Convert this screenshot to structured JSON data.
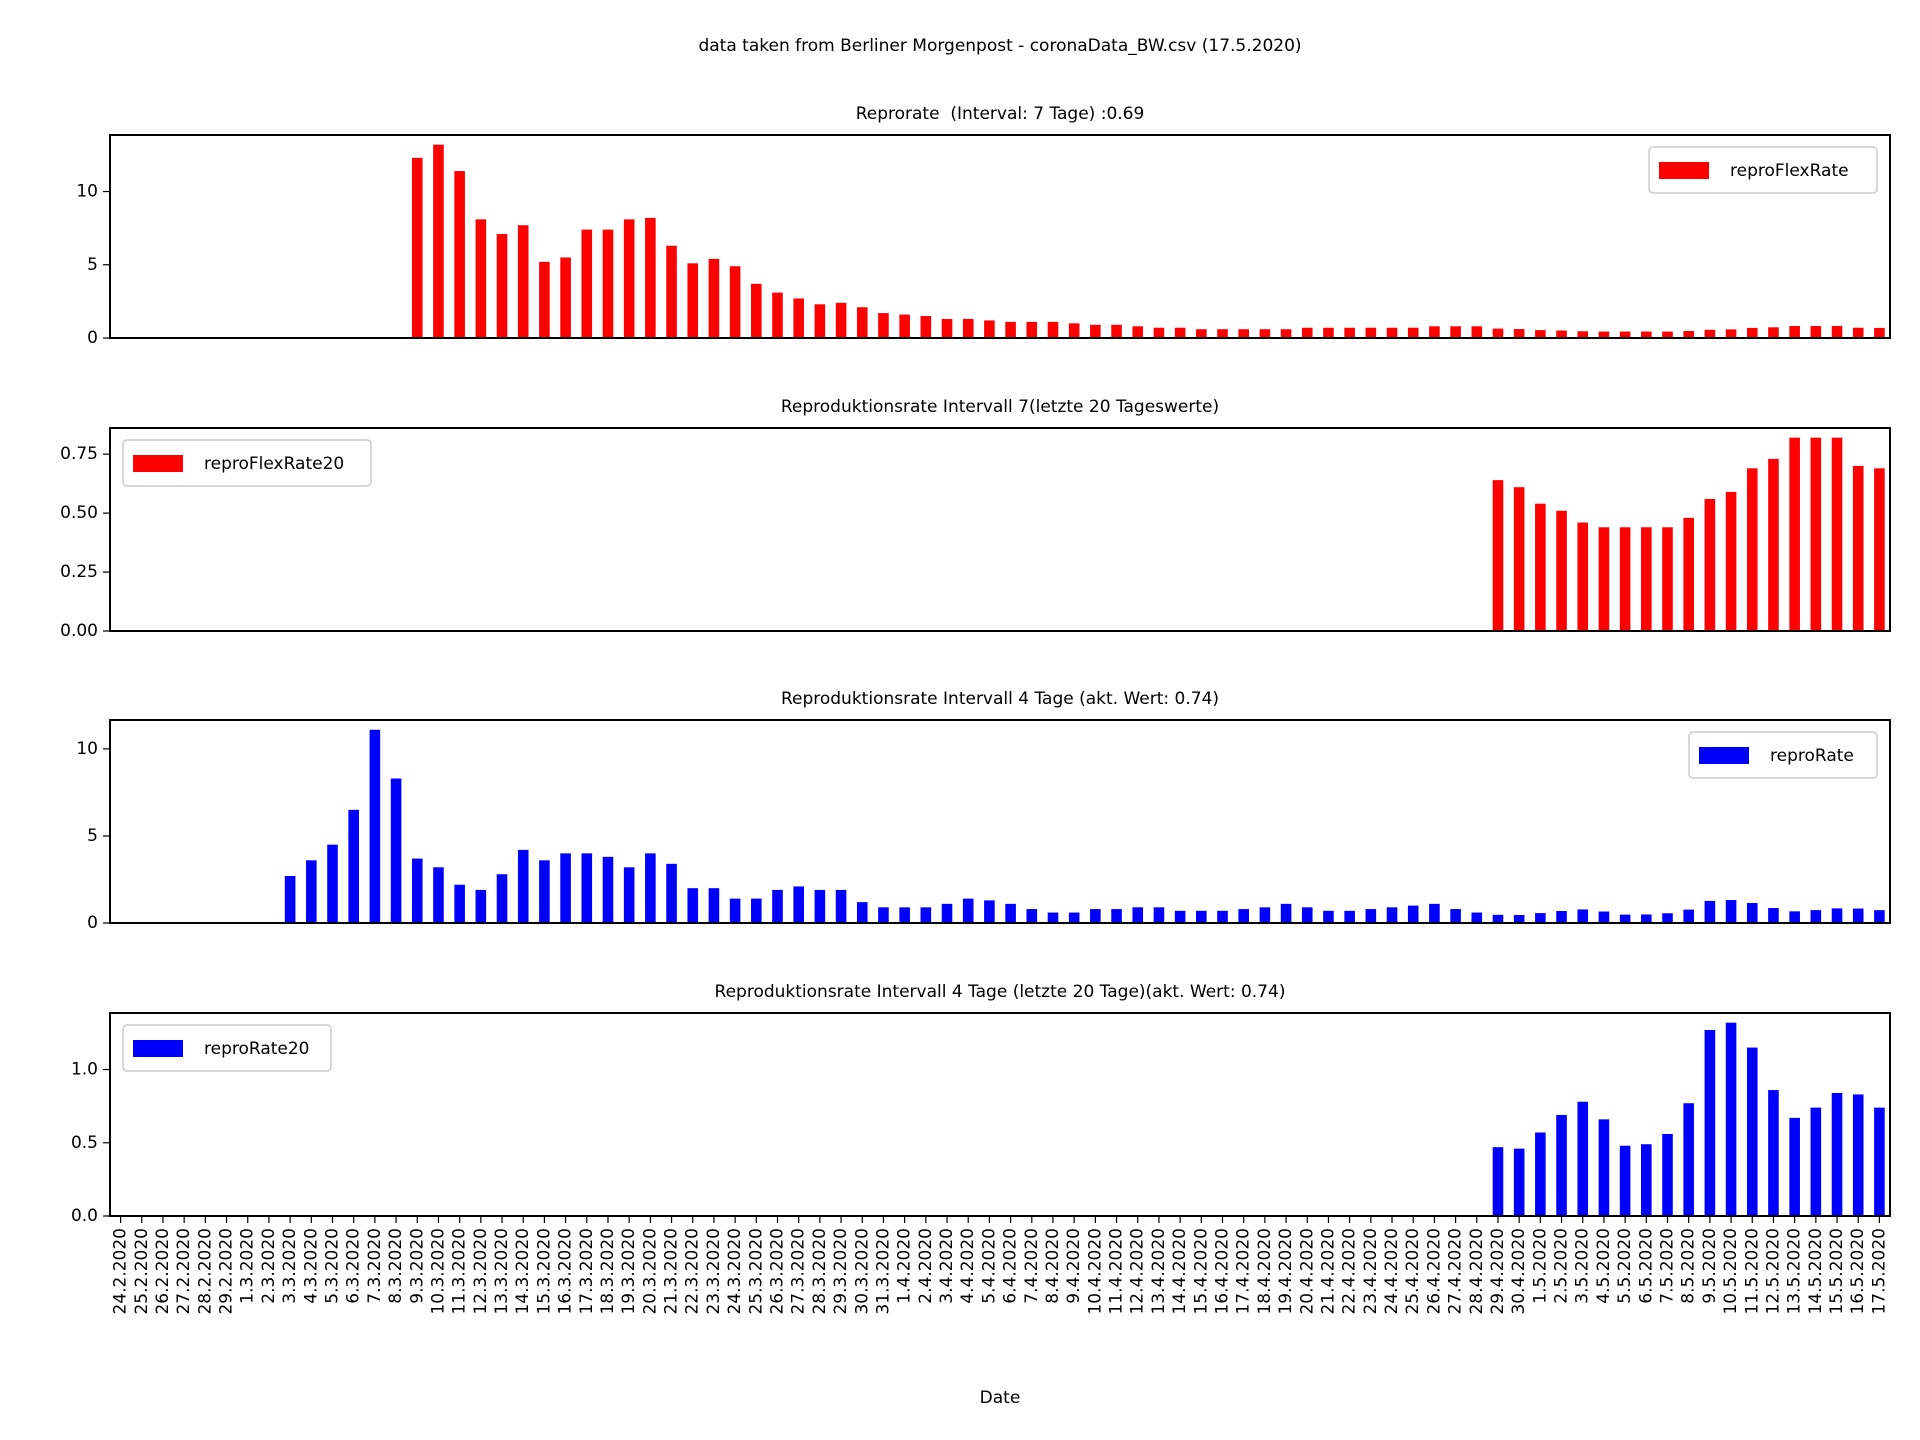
{
  "title": "data taken from Berliner Morgenpost - coronaData_BW.csv (17.5.2020)",
  "chart_data": [
    {
      "type": "bar",
      "title": "Reprorate  (Interval: 7 Tage) :0.69",
      "series": [
        {
          "name": "reproFlexRate",
          "color": "#ff0000",
          "values": [
            null,
            null,
            null,
            null,
            null,
            null,
            null,
            null,
            null,
            null,
            null,
            null,
            null,
            null,
            12.3,
            13.2,
            11.4,
            8.1,
            7.1,
            7.7,
            5.2,
            5.5,
            7.4,
            7.4,
            8.1,
            8.2,
            6.3,
            5.1,
            5.4,
            4.9,
            3.7,
            3.1,
            2.7,
            2.3,
            2.4,
            2.1,
            1.7,
            1.6,
            1.5,
            1.3,
            1.3,
            1.2,
            1.1,
            1.1,
            1.1,
            1.0,
            0.9,
            0.9,
            0.8,
            0.7,
            0.7,
            0.6,
            0.6,
            0.6,
            0.6,
            0.6,
            0.7,
            0.7,
            0.7,
            0.7,
            0.7,
            0.7,
            0.8,
            0.8,
            0.8,
            0.64,
            0.61,
            0.54,
            0.51,
            0.46,
            0.44,
            0.44,
            0.44,
            0.44,
            0.48,
            0.56,
            0.59,
            0.69,
            0.73,
            0.82,
            0.82,
            0.82,
            0.7,
            0.69
          ]
        }
      ],
      "ylim": [
        0,
        13.86
      ],
      "yticks": [
        0,
        5,
        10
      ],
      "legend": "upper right"
    },
    {
      "type": "bar",
      "title": "Reproduktionsrate Intervall 7(letzte 20 Tageswerte)",
      "series": [
        {
          "name": "reproFlexRate20",
          "color": "#ff0000",
          "values": [
            null,
            null,
            null,
            null,
            null,
            null,
            null,
            null,
            null,
            null,
            null,
            null,
            null,
            null,
            null,
            null,
            null,
            null,
            null,
            null,
            null,
            null,
            null,
            null,
            null,
            null,
            null,
            null,
            null,
            null,
            null,
            null,
            null,
            null,
            null,
            null,
            null,
            null,
            null,
            null,
            null,
            null,
            null,
            null,
            null,
            null,
            null,
            null,
            null,
            null,
            null,
            null,
            null,
            null,
            null,
            null,
            null,
            null,
            null,
            null,
            null,
            null,
            null,
            null,
            null,
            0.64,
            0.61,
            0.54,
            0.51,
            0.46,
            0.44,
            0.44,
            0.44,
            0.44,
            0.48,
            0.56,
            0.59,
            0.69,
            0.73,
            0.82,
            0.82,
            0.82,
            0.7,
            0.69
          ]
        }
      ],
      "ylim": [
        0,
        0.861
      ],
      "yticks": [
        {
          "value": 0,
          "label": "0.00"
        },
        0.25,
        {
          "value": 0.5,
          "label": "0.50"
        },
        0.75
      ],
      "legend": "upper left"
    },
    {
      "type": "bar",
      "title": "Reproduktionsrate Intervall 4 Tage (akt. Wert: 0.74)",
      "series": [
        {
          "name": "reproRate",
          "color": "#0000ff",
          "values": [
            null,
            null,
            null,
            null,
            null,
            null,
            null,
            null,
            2.7,
            3.6,
            4.5,
            6.5,
            11.1,
            8.3,
            3.7,
            3.2,
            2.2,
            1.9,
            2.8,
            4.2,
            3.6,
            4.0,
            4.0,
            3.8,
            3.2,
            4.0,
            3.4,
            2.0,
            2.0,
            1.4,
            1.4,
            1.9,
            2.1,
            1.9,
            1.9,
            1.2,
            0.9,
            0.9,
            0.9,
            1.1,
            1.4,
            1.3,
            1.1,
            0.8,
            0.6,
            0.6,
            0.8,
            0.8,
            0.9,
            0.9,
            0.7,
            0.7,
            0.7,
            0.8,
            0.9,
            1.1,
            0.9,
            0.7,
            0.7,
            0.8,
            0.9,
            1.0,
            1.1,
            0.8,
            0.6,
            0.47,
            0.46,
            0.57,
            0.69,
            0.78,
            0.66,
            0.48,
            0.49,
            0.56,
            0.77,
            1.27,
            1.32,
            1.15,
            0.86,
            0.67,
            0.74,
            0.84,
            0.83,
            0.74
          ]
        }
      ],
      "ylim": [
        0,
        11.66
      ],
      "yticks": [
        0,
        5,
        10
      ],
      "legend": "upper right"
    },
    {
      "type": "bar",
      "title": "Reproduktionsrate Intervall 4 Tage (letzte 20 Tage)(akt. Wert: 0.74)",
      "xlabel": "Date",
      "categories": [
        "24.2.2020",
        "25.2.2020",
        "26.2.2020",
        "27.2.2020",
        "28.2.2020",
        "29.2.2020",
        "1.3.2020",
        "2.3.2020",
        "3.3.2020",
        "4.3.2020",
        "5.3.2020",
        "6.3.2020",
        "7.3.2020",
        "8.3.2020",
        "9.3.2020",
        "10.3.2020",
        "11.3.2020",
        "12.3.2020",
        "13.3.2020",
        "14.3.2020",
        "15.3.2020",
        "16.3.2020",
        "17.3.2020",
        "18.3.2020",
        "19.3.2020",
        "20.3.2020",
        "21.3.2020",
        "22.3.2020",
        "23.3.2020",
        "24.3.2020",
        "25.3.2020",
        "26.3.2020",
        "27.3.2020",
        "28.3.2020",
        "29.3.2020",
        "30.3.2020",
        "31.3.2020",
        "1.4.2020",
        "2.4.2020",
        "3.4.2020",
        "4.4.2020",
        "5.4.2020",
        "6.4.2020",
        "7.4.2020",
        "8.4.2020",
        "9.4.2020",
        "10.4.2020",
        "11.4.2020",
        "12.4.2020",
        "13.4.2020",
        "14.4.2020",
        "15.4.2020",
        "16.4.2020",
        "17.4.2020",
        "18.4.2020",
        "19.4.2020",
        "20.4.2020",
        "21.4.2020",
        "22.4.2020",
        "23.4.2020",
        "24.4.2020",
        "25.4.2020",
        "26.4.2020",
        "27.4.2020",
        "28.4.2020",
        "29.4.2020",
        "30.4.2020",
        "1.5.2020",
        "2.5.2020",
        "3.5.2020",
        "4.5.2020",
        "5.5.2020",
        "6.5.2020",
        "7.5.2020",
        "8.5.2020",
        "9.5.2020",
        "10.5.2020",
        "11.5.2020",
        "12.5.2020",
        "13.5.2020",
        "14.5.2020",
        "15.5.2020",
        "16.5.2020",
        "17.5.2020"
      ],
      "series": [
        {
          "name": "reproRate20",
          "color": "#0000ff",
          "values": [
            null,
            null,
            null,
            null,
            null,
            null,
            null,
            null,
            null,
            null,
            null,
            null,
            null,
            null,
            null,
            null,
            null,
            null,
            null,
            null,
            null,
            null,
            null,
            null,
            null,
            null,
            null,
            null,
            null,
            null,
            null,
            null,
            null,
            null,
            null,
            null,
            null,
            null,
            null,
            null,
            null,
            null,
            null,
            null,
            null,
            null,
            null,
            null,
            null,
            null,
            null,
            null,
            null,
            null,
            null,
            null,
            null,
            null,
            null,
            null,
            null,
            null,
            null,
            null,
            null,
            0.47,
            0.46,
            0.57,
            0.69,
            0.78,
            0.66,
            0.48,
            0.49,
            0.56,
            0.77,
            1.27,
            1.32,
            1.15,
            0.86,
            0.67,
            0.74,
            0.84,
            0.83,
            0.74
          ]
        }
      ],
      "ylim": [
        0,
        1.386
      ],
      "yticks": [
        {
          "value": 0,
          "label": "0.0"
        },
        0.5,
        {
          "value": 1,
          "label": "1.0"
        }
      ],
      "legend": "upper left"
    }
  ]
}
